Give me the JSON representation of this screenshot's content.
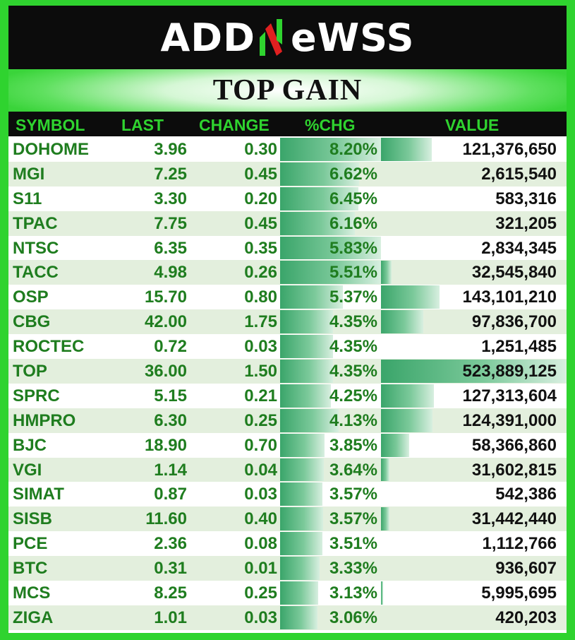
{
  "brand": {
    "logo_left": "ADD",
    "logo_right": "eWSS",
    "logo_mark": "N"
  },
  "title": "TOP GAIN",
  "headers": {
    "symbol": "SYMBOL",
    "last": "LAST",
    "change": "CHANGE",
    "pct": "%CHG",
    "value": "VALUE"
  },
  "colors": {
    "accent_green": "#2fd32f",
    "text_green": "#1f7d1f",
    "header_bg": "#0c0c0c",
    "row_alt": "#e3efdd"
  },
  "rows": [
    {
      "symbol": "DOHOME",
      "last": "3.96",
      "change": "0.30",
      "pct": "8.20%",
      "value": "121,376,650"
    },
    {
      "symbol": "MGI",
      "last": "7.25",
      "change": "0.45",
      "pct": "6.62%",
      "value": "2,615,540"
    },
    {
      "symbol": "S11",
      "last": "3.30",
      "change": "0.20",
      "pct": "6.45%",
      "value": "583,316"
    },
    {
      "symbol": "TPAC",
      "last": "7.75",
      "change": "0.45",
      "pct": "6.16%",
      "value": "321,205"
    },
    {
      "symbol": "NTSC",
      "last": "6.35",
      "change": "0.35",
      "pct": "5.83%",
      "value": "2,834,345"
    },
    {
      "symbol": "TACC",
      "last": "4.98",
      "change": "0.26",
      "pct": "5.51%",
      "value": "32,545,840"
    },
    {
      "symbol": "OSP",
      "last": "15.70",
      "change": "0.80",
      "pct": "5.37%",
      "value": "143,101,210"
    },
    {
      "symbol": "CBG",
      "last": "42.00",
      "change": "1.75",
      "pct": "4.35%",
      "value": "97,836,700"
    },
    {
      "symbol": "ROCTEC",
      "last": "0.72",
      "change": "0.03",
      "pct": "4.35%",
      "value": "1,251,485"
    },
    {
      "symbol": "TOP",
      "last": "36.00",
      "change": "1.50",
      "pct": "4.35%",
      "value": "523,889,125"
    },
    {
      "symbol": "SPRC",
      "last": "5.15",
      "change": "0.21",
      "pct": "4.25%",
      "value": "127,313,604"
    },
    {
      "symbol": "HMPRO",
      "last": "6.30",
      "change": "0.25",
      "pct": "4.13%",
      "value": "124,391,000"
    },
    {
      "symbol": "BJC",
      "last": "18.90",
      "change": "0.70",
      "pct": "3.85%",
      "value": "58,366,860"
    },
    {
      "symbol": "VGI",
      "last": "1.14",
      "change": "0.04",
      "pct": "3.64%",
      "value": "31,602,815"
    },
    {
      "symbol": "SIMAT",
      "last": "0.87",
      "change": "0.03",
      "pct": "3.57%",
      "value": "542,386"
    },
    {
      "symbol": "SISB",
      "last": "11.60",
      "change": "0.40",
      "pct": "3.57%",
      "value": "31,442,440"
    },
    {
      "symbol": "PCE",
      "last": "2.36",
      "change": "0.08",
      "pct": "3.51%",
      "value": "1,112,766"
    },
    {
      "symbol": "BTC",
      "last": "0.31",
      "change": "0.01",
      "pct": "3.33%",
      "value": "936,607"
    },
    {
      "symbol": "MCS",
      "last": "8.25",
      "change": "0.25",
      "pct": "3.13%",
      "value": "5,995,695"
    },
    {
      "symbol": "ZIGA",
      "last": "1.01",
      "change": "0.03",
      "pct": "3.06%",
      "value": "420,203"
    }
  ]
}
